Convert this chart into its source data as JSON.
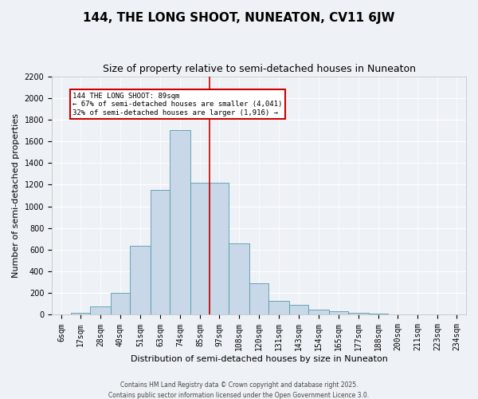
{
  "title": "144, THE LONG SHOOT, NUNEATON, CV11 6JW",
  "subtitle": "Size of property relative to semi-detached houses in Nuneaton",
  "xlabel": "Distribution of semi-detached houses by size in Nuneaton",
  "ylabel": "Number of semi-detached properties",
  "bar_color": "#c8d8e8",
  "bar_edge_color": "#5599aa",
  "vline_color": "#cc0000",
  "bin_labels": [
    "6sqm",
    "17sqm",
    "28sqm",
    "40sqm",
    "51sqm",
    "63sqm",
    "74sqm",
    "85sqm",
    "97sqm",
    "108sqm",
    "120sqm",
    "131sqm",
    "143sqm",
    "154sqm",
    "165sqm",
    "177sqm",
    "188sqm",
    "200sqm",
    "211sqm",
    "223sqm",
    "234sqm"
  ],
  "bin_edges": [
    0,
    11,
    22,
    34,
    45,
    57,
    68,
    80,
    91,
    102,
    114,
    125,
    137,
    148,
    160,
    171,
    183,
    194,
    205,
    217,
    228,
    239
  ],
  "bar_heights": [
    0,
    20,
    80,
    200,
    640,
    1150,
    1700,
    1220,
    1220,
    660,
    290,
    130,
    90,
    50,
    30,
    15,
    10,
    5,
    3,
    3,
    3
  ],
  "ylim": [
    0,
    2200
  ],
  "yticks": [
    0,
    200,
    400,
    600,
    800,
    1000,
    1200,
    1400,
    1600,
    1800,
    2000,
    2200
  ],
  "annotation_title": "144 THE LONG SHOOT: 89sqm",
  "annotation_line1": "← 67% of semi-detached houses are smaller (4,041)",
  "annotation_line2": "32% of semi-detached houses are larger (1,916) →",
  "annotation_color": "#cc0000",
  "bg_color": "#eef2f6",
  "footer1": "Contains HM Land Registry data © Crown copyright and database right 2025.",
  "footer2": "Contains public sector information licensed under the Open Government Licence 3.0.",
  "title_fontsize": 11,
  "subtitle_fontsize": 9,
  "axis_label_fontsize": 8,
  "tick_fontsize": 7,
  "footer_fontsize": 5.5
}
